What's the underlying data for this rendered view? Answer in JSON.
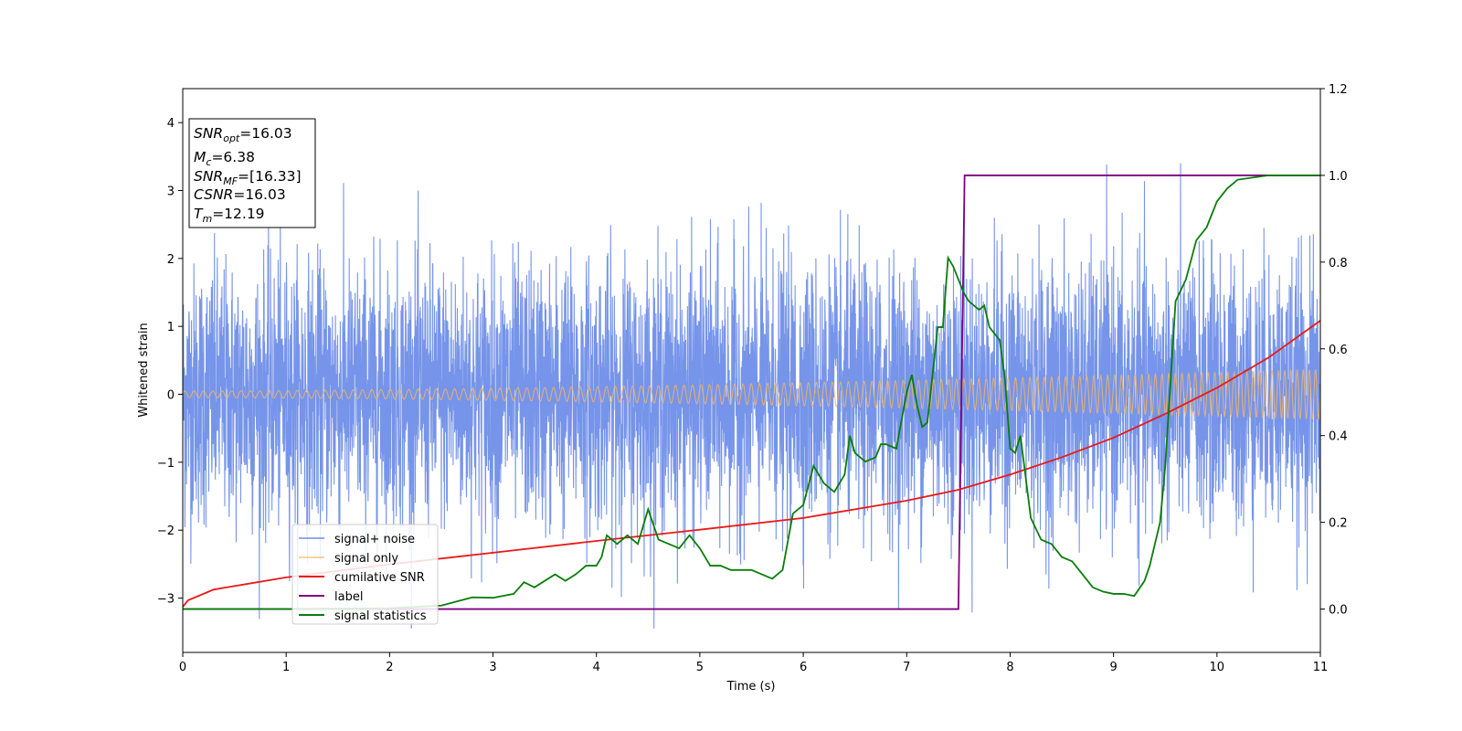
{
  "chart_data": {
    "type": "line",
    "xlabel": "Time (s)",
    "ylabel": "Whitened strain",
    "xlim": [
      0,
      11
    ],
    "ylim": [
      -3.8,
      4.5
    ],
    "y2lim": [
      -0.1,
      1.2
    ],
    "x_ticks": [
      "0",
      "1",
      "2",
      "3",
      "4",
      "5",
      "6",
      "7",
      "8",
      "9",
      "10",
      "11"
    ],
    "y_ticks": [
      "−3",
      "−2",
      "−1",
      "0",
      "1",
      "2",
      "3",
      "4"
    ],
    "y2_ticks": [
      "0.0",
      "0.2",
      "0.4",
      "0.6",
      "0.8",
      "1.0",
      "1.2"
    ],
    "info_box": {
      "snr_opt": {
        "base": "SNR",
        "sub": "opt",
        "value": "=16.03"
      },
      "mc": {
        "base": "M",
        "sub": "c",
        "value": "=6.38"
      },
      "snr_mf": {
        "base": "SNR",
        "sub": "MF",
        "value": "=[16.33]"
      },
      "csnr": {
        "base": "CSNR",
        "value": "=16.03"
      },
      "tm": {
        "base": "T",
        "sub": "m",
        "value": "=12.19"
      }
    },
    "series": [
      {
        "name": "signal+ noise",
        "color": "#6f8ee8",
        "axis": "left",
        "description_values": {
          "envelope_upper": 2.0,
          "envelope_lower": -2.0,
          "peak_max": 3.4,
          "peak_min": -3.45
        }
      },
      {
        "name": "signal only",
        "color": "#f5b565",
        "axis": "left",
        "amplitude_start": 0.05,
        "amplitude_end": 0.37
      },
      {
        "name": "cumilative SNR",
        "color": "#e8191a",
        "axis": "right",
        "x": [
          0,
          0.05,
          0.3,
          1,
          2,
          3,
          4,
          5,
          6,
          7,
          7.5,
          8,
          8.5,
          9,
          9.5,
          10,
          10.5,
          11
        ],
        "y": [
          0.005,
          0.02,
          0.045,
          0.073,
          0.103,
          0.13,
          0.157,
          0.183,
          0.21,
          0.25,
          0.275,
          0.31,
          0.35,
          0.395,
          0.45,
          0.51,
          0.58,
          0.665
        ]
      },
      {
        "name": "label",
        "color": "#800080",
        "axis": "right",
        "x": [
          0,
          7.5,
          7.56,
          11
        ],
        "y": [
          0,
          0,
          1,
          1
        ]
      },
      {
        "name": "signal statistics",
        "color": "#0a7d0a",
        "axis": "right",
        "x": [
          0,
          1,
          2,
          2.5,
          2.8,
          3.0,
          3.2,
          3.3,
          3.4,
          3.5,
          3.6,
          3.7,
          3.8,
          3.9,
          4.0,
          4.05,
          4.1,
          4.2,
          4.3,
          4.4,
          4.5,
          4.6,
          4.7,
          4.8,
          4.9,
          5.0,
          5.1,
          5.2,
          5.3,
          5.4,
          5.5,
          5.6,
          5.7,
          5.8,
          5.9,
          6.0,
          6.1,
          6.2,
          6.3,
          6.4,
          6.45,
          6.5,
          6.6,
          6.7,
          6.75,
          6.8,
          6.9,
          7.0,
          7.05,
          7.1,
          7.15,
          7.2,
          7.3,
          7.35,
          7.4,
          7.45,
          7.5,
          7.55,
          7.6,
          7.7,
          7.75,
          7.8,
          7.9,
          7.95,
          8.0,
          8.05,
          8.1,
          8.2,
          8.3,
          8.4,
          8.5,
          8.6,
          8.7,
          8.8,
          8.9,
          9.0,
          9.1,
          9.2,
          9.3,
          9.35,
          9.4,
          9.45,
          9.5,
          9.6,
          9.7,
          9.8,
          9.9,
          10.0,
          10.1,
          10.2,
          10.5,
          11
        ],
        "y": [
          0,
          0,
          0.002,
          0.008,
          0.027,
          0.026,
          0.035,
          0.062,
          0.05,
          0.065,
          0.08,
          0.065,
          0.08,
          0.1,
          0.1,
          0.12,
          0.17,
          0.15,
          0.17,
          0.15,
          0.23,
          0.16,
          0.15,
          0.14,
          0.17,
          0.14,
          0.1,
          0.1,
          0.09,
          0.09,
          0.09,
          0.08,
          0.07,
          0.09,
          0.22,
          0.24,
          0.33,
          0.29,
          0.27,
          0.31,
          0.4,
          0.36,
          0.34,
          0.35,
          0.38,
          0.38,
          0.37,
          0.5,
          0.54,
          0.47,
          0.42,
          0.43,
          0.65,
          0.65,
          0.81,
          0.79,
          0.76,
          0.73,
          0.71,
          0.69,
          0.7,
          0.65,
          0.62,
          0.53,
          0.37,
          0.36,
          0.4,
          0.21,
          0.16,
          0.15,
          0.12,
          0.11,
          0.08,
          0.05,
          0.04,
          0.035,
          0.035,
          0.03,
          0.065,
          0.1,
          0.15,
          0.2,
          0.33,
          0.71,
          0.76,
          0.85,
          0.88,
          0.94,
          0.97,
          0.99,
          1.0,
          1.0
        ]
      }
    ],
    "legend_position": "lower-left"
  }
}
